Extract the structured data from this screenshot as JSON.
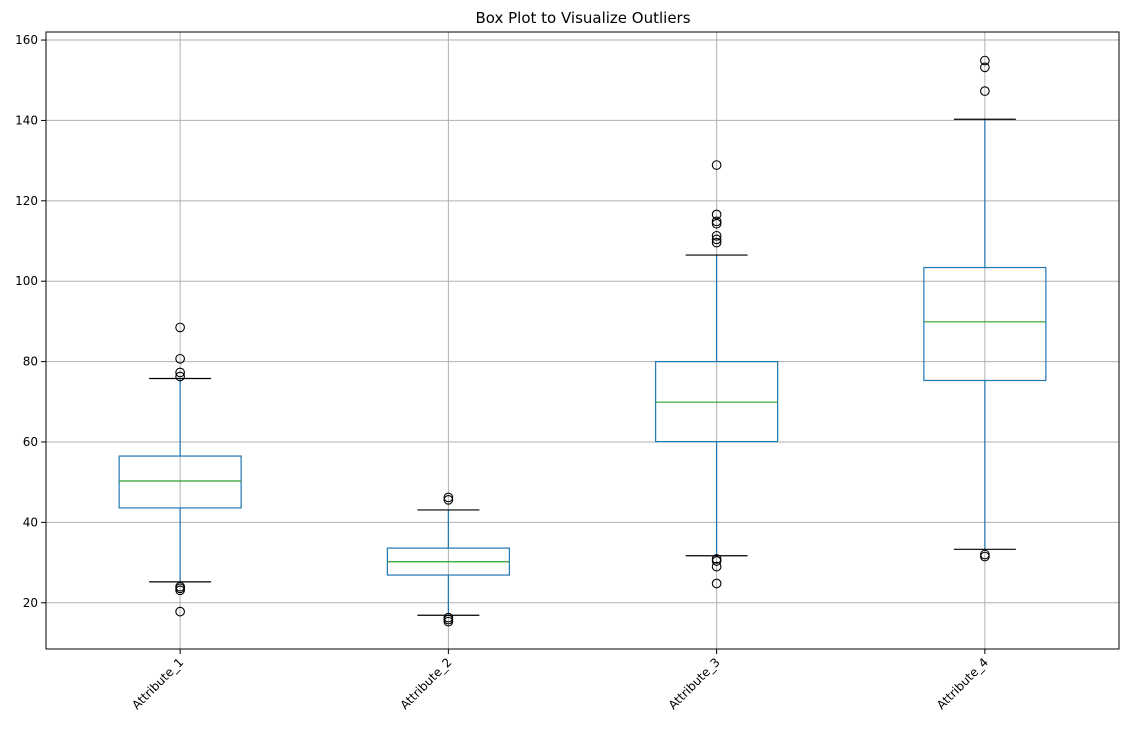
{
  "chart_data": {
    "type": "box",
    "title": "Box Plot to Visualize Outliers",
    "xlabel": "",
    "ylabel": "",
    "ylim": [
      8.5,
      162
    ],
    "yticks": [
      20,
      40,
      60,
      80,
      100,
      120,
      140,
      160
    ],
    "grid": true,
    "xtick_rotation_deg": 45,
    "categories": [
      "Attribute_1",
      "Attribute_2",
      "Attribute_3",
      "Attribute_4"
    ],
    "series": [
      {
        "category": "Attribute_1",
        "whisker_low": 25.2,
        "q1": 43.6,
        "median": 50.3,
        "q3": 56.5,
        "whisker_high": 75.8,
        "outliers": [
          88.5,
          80.7,
          77.3,
          76.3,
          24.0,
          23.6,
          23.1,
          17.8
        ]
      },
      {
        "category": "Attribute_2",
        "whisker_low": 16.9,
        "q1": 26.9,
        "median": 30.2,
        "q3": 33.6,
        "whisker_high": 43.1,
        "outliers": [
          46.2,
          45.6,
          16.3,
          15.8,
          15.3
        ]
      },
      {
        "category": "Attribute_3",
        "whisker_low": 31.7,
        "q1": 60.1,
        "median": 69.9,
        "q3": 80.0,
        "whisker_high": 106.5,
        "outliers": [
          128.9,
          116.6,
          114.9,
          114.3,
          111.3,
          110.4,
          109.6,
          30.9,
          30.4,
          29.0,
          24.8
        ]
      },
      {
        "category": "Attribute_4",
        "whisker_low": 33.3,
        "q1": 75.3,
        "median": 89.9,
        "q3": 103.4,
        "whisker_high": 140.3,
        "outliers": [
          154.9,
          153.2,
          147.3,
          32.0,
          31.5
        ]
      }
    ],
    "colors": {
      "box": "#1f77b4",
      "median": "#2ca02c",
      "cap": "#000000",
      "flier": "#000000",
      "grid": "#b0b0b0",
      "axis": "#000000"
    }
  }
}
